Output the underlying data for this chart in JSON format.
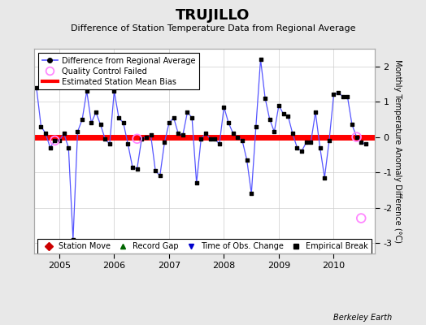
{
  "title": "TRUJILLO",
  "subtitle": "Difference of Station Temperature Data from Regional Average",
  "ylabel": "Monthly Temperature Anomaly Difference (°C)",
  "footer": "Berkeley Earth",
  "bias": 0.0,
  "ylim": [
    -3.3,
    2.5
  ],
  "xlim": [
    2004.54,
    2010.75
  ],
  "xticks": [
    2005,
    2006,
    2007,
    2008,
    2009,
    2010
  ],
  "yticks": [
    -3,
    -2,
    -1,
    0,
    1,
    2
  ],
  "bg_color": "#e8e8e8",
  "plot_bg_color": "#ffffff",
  "line_color": "#5555ff",
  "bias_color": "#ff0000",
  "marker_color": "#000000",
  "qc_color": "#ff88ff",
  "times": [
    2004.583,
    2004.667,
    2004.75,
    2004.833,
    2004.917,
    2005.0,
    2005.083,
    2005.167,
    2005.25,
    2005.333,
    2005.417,
    2005.5,
    2005.583,
    2005.667,
    2005.75,
    2005.833,
    2005.917,
    2006.0,
    2006.083,
    2006.167,
    2006.25,
    2006.333,
    2006.417,
    2006.5,
    2006.583,
    2006.667,
    2006.75,
    2006.833,
    2006.917,
    2007.0,
    2007.083,
    2007.167,
    2007.25,
    2007.333,
    2007.417,
    2007.5,
    2007.583,
    2007.667,
    2007.75,
    2007.833,
    2007.917,
    2008.0,
    2008.083,
    2008.167,
    2008.25,
    2008.333,
    2008.417,
    2008.5,
    2008.583,
    2008.667,
    2008.75,
    2008.833,
    2008.917,
    2009.0,
    2009.083,
    2009.167,
    2009.25,
    2009.333,
    2009.417,
    2009.5,
    2009.583,
    2009.667,
    2009.75,
    2009.833,
    2009.917,
    2010.0,
    2010.083,
    2010.167,
    2010.25,
    2010.333,
    2010.417,
    2010.5,
    2010.583
  ],
  "values": [
    1.4,
    0.3,
    0.1,
    -0.3,
    -0.1,
    -0.1,
    0.1,
    -0.3,
    -2.9,
    0.15,
    0.5,
    1.3,
    0.4,
    0.7,
    0.35,
    -0.05,
    -0.2,
    1.3,
    0.55,
    0.4,
    -0.2,
    -0.85,
    -0.9,
    -0.05,
    0.0,
    0.05,
    -0.95,
    -1.1,
    -0.15,
    0.4,
    0.55,
    0.1,
    0.05,
    0.7,
    0.55,
    -1.3,
    -0.05,
    0.1,
    -0.05,
    -0.05,
    -0.2,
    0.85,
    0.4,
    0.1,
    0.0,
    -0.1,
    -0.65,
    -1.6,
    0.3,
    2.2,
    1.1,
    0.5,
    0.15,
    0.9,
    0.65,
    0.6,
    0.1,
    -0.3,
    -0.4,
    -0.15,
    -0.15,
    0.7,
    -0.3,
    -1.15,
    -0.1,
    1.2,
    1.25,
    1.15,
    1.15,
    0.35,
    0.0,
    -0.15,
    -0.2
  ],
  "qc_failed_times": [
    2004.917,
    2006.417,
    2010.417,
    2010.5
  ],
  "qc_failed_values": [
    -0.1,
    -0.05,
    0.0,
    -2.3
  ],
  "title_fontsize": 13,
  "subtitle_fontsize": 8,
  "tick_fontsize": 8,
  "ylabel_fontsize": 7,
  "legend_fontsize": 7,
  "footer_fontsize": 7
}
